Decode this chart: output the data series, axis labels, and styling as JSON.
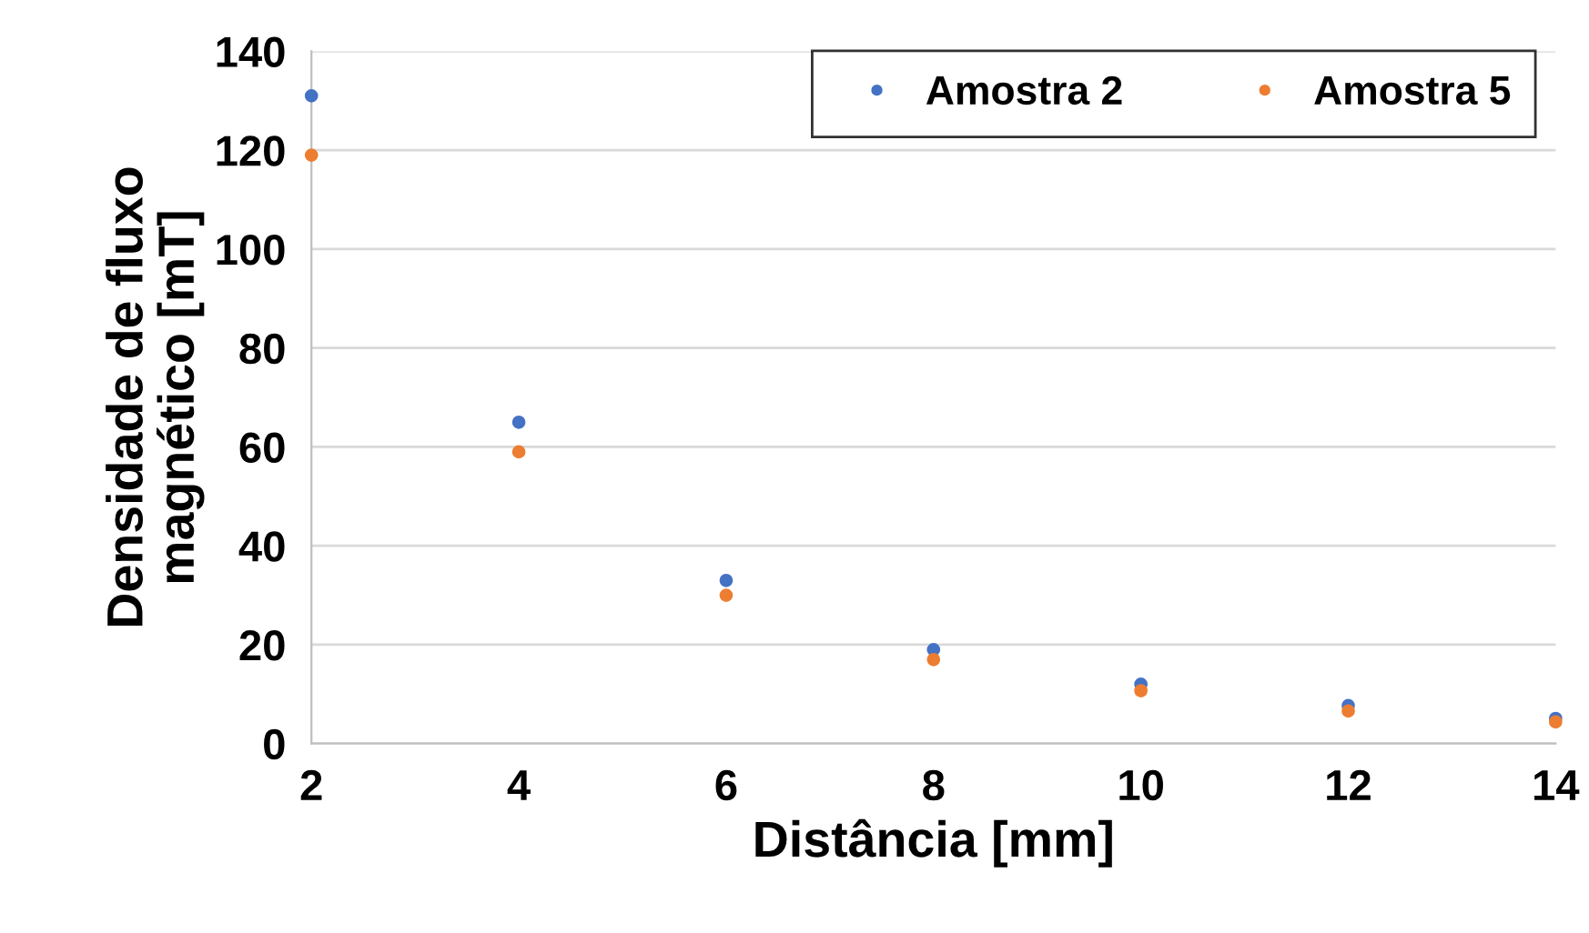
{
  "chart_data": {
    "type": "scatter",
    "xlabel": "Distância [mm]",
    "ylabel": "Densidade de fluxo\nmagnético [mT]",
    "x": [
      2,
      4,
      6,
      8,
      10,
      12,
      14
    ],
    "series": [
      {
        "name": "Amostra 2",
        "color": "#4472c4",
        "values": [
          131,
          65,
          33,
          19,
          12,
          7.7,
          5.1
        ]
      },
      {
        "name": "Amostra 5",
        "color": "#ed7d31",
        "values": [
          119,
          59,
          30,
          17,
          10.7,
          6.6,
          4.4
        ]
      }
    ],
    "xlim": [
      2,
      14
    ],
    "xticks": [
      2,
      4,
      6,
      8,
      10,
      12,
      14
    ],
    "ylim": [
      0,
      140
    ],
    "yticks": [
      0,
      20,
      40,
      60,
      80,
      100,
      120,
      140
    ],
    "grid": "y",
    "legend": "top right",
    "marker": "circle"
  }
}
